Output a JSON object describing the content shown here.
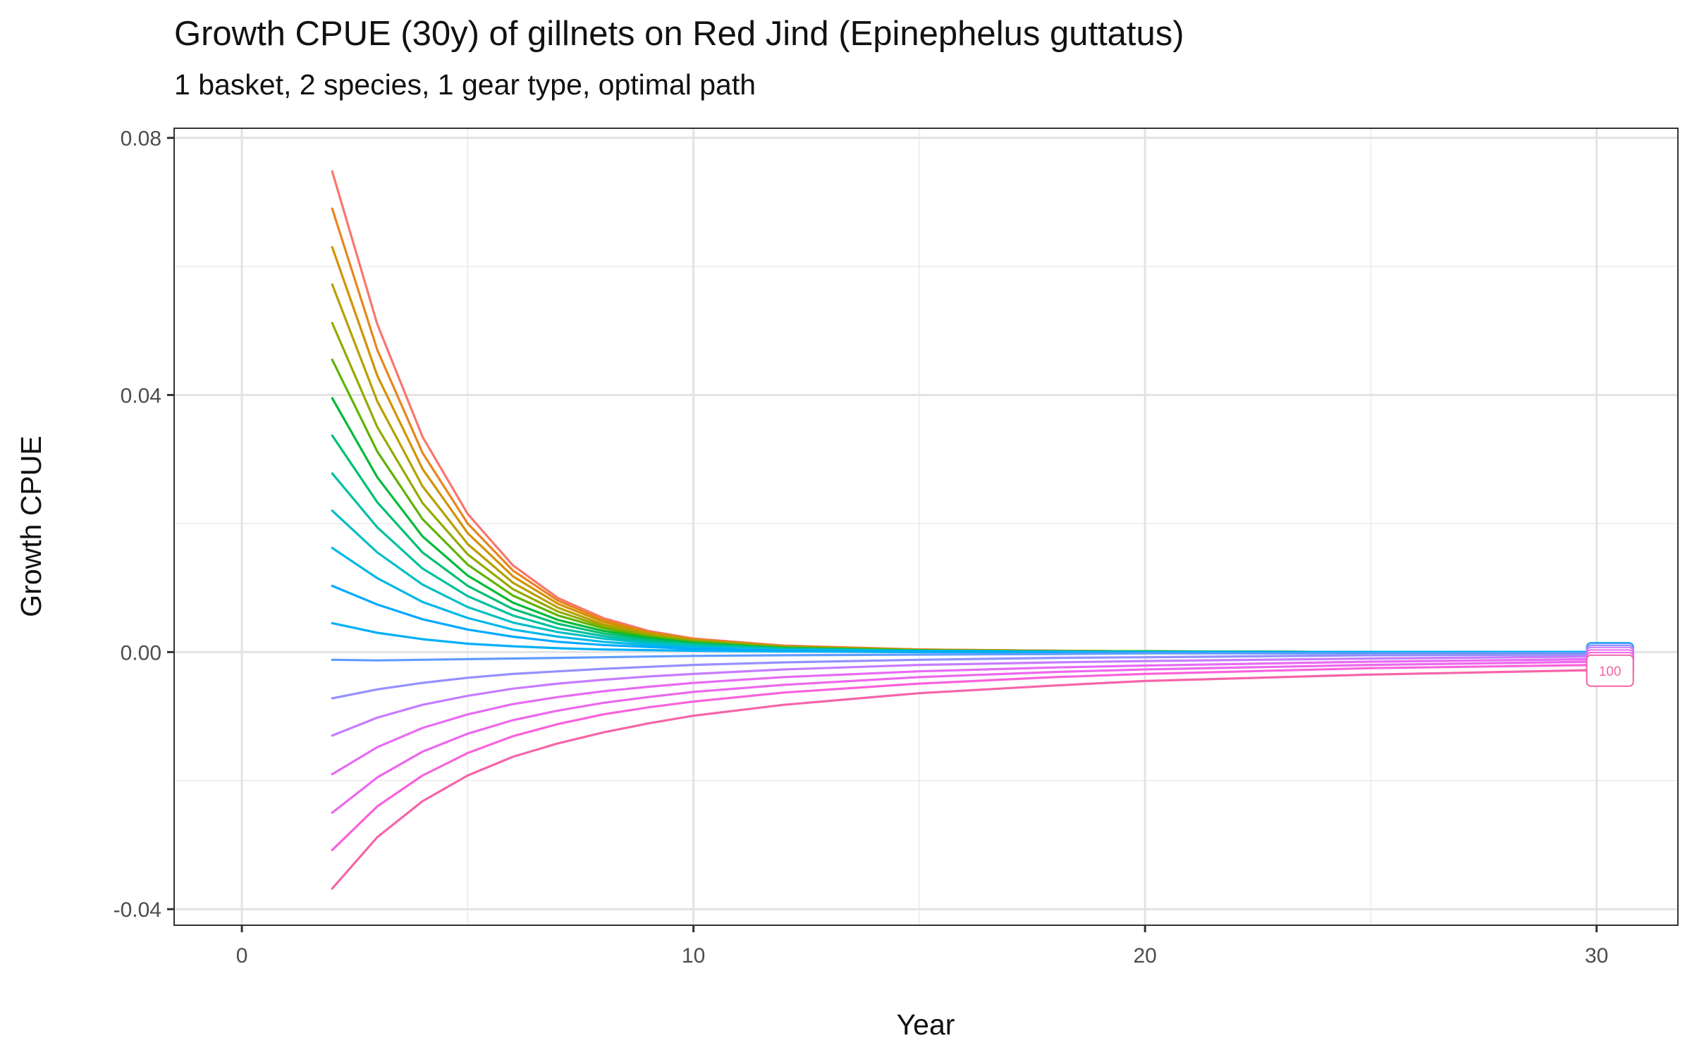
{
  "chart_data": {
    "type": "line",
    "title": "Growth CPUE (30y) of gillnets on Red Jind (Epinephelus guttatus)",
    "subtitle": "1 basket, 2 species, 1 gear type, optimal path",
    "xlabel": "Year",
    "ylabel": "Growth CPUE",
    "xlim": [
      -1.5,
      31.8
    ],
    "ylim": [
      -0.0425,
      0.0815
    ],
    "x_ticks": [
      0,
      10,
      20,
      30
    ],
    "x_tick_labels": [
      "0",
      "10",
      "20",
      "30"
    ],
    "y_ticks": [
      -0.04,
      0,
      0.04,
      0.08
    ],
    "y_tick_labels": [
      "-0.04",
      "0.00",
      "0.04",
      "0.08"
    ],
    "x_minor_ticks": [
      5,
      15,
      25
    ],
    "y_minor_ticks": [
      -0.02,
      0.02,
      0.06
    ],
    "grid": true,
    "legend": "none",
    "end_label": {
      "x": 30.35,
      "y": -0.0029,
      "text": "100",
      "color": "#f564a8"
    },
    "years": [
      2,
      3,
      4,
      5,
      6,
      7,
      8,
      9,
      10,
      12,
      15,
      18,
      20,
      25,
      30
    ],
    "series": [
      {
        "color": "#f8766d",
        "values": [
          0.0748,
          0.051,
          0.0335,
          0.0215,
          0.0135,
          0.0084,
          0.0053,
          0.0033,
          0.0021,
          0.001,
          0.0004,
          0.0002,
          0.0001,
          0.0,
          0.0
        ]
      },
      {
        "color": "#e7851e",
        "values": [
          0.069,
          0.047,
          0.031,
          0.02,
          0.0127,
          0.008,
          0.005,
          0.0031,
          0.002,
          0.0009,
          0.0004,
          0.0002,
          0.0001,
          0.0,
          0.0
        ]
      },
      {
        "color": "#d39200",
        "values": [
          0.063,
          0.043,
          0.0285,
          0.0185,
          0.0118,
          0.0075,
          0.0047,
          0.003,
          0.0019,
          0.0009,
          0.0003,
          0.0002,
          0.0001,
          0.0,
          0.0
        ]
      },
      {
        "color": "#b79f00",
        "values": [
          0.0572,
          0.039,
          0.0258,
          0.0168,
          0.0108,
          0.0069,
          0.0043,
          0.0028,
          0.0018,
          0.0008,
          0.0003,
          0.0001,
          0.0001,
          0.0,
          0.0
        ]
      },
      {
        "color": "#93aa00",
        "values": [
          0.0512,
          0.035,
          0.0232,
          0.0152,
          0.0098,
          0.0063,
          0.004,
          0.0026,
          0.0017,
          0.0008,
          0.0003,
          0.0001,
          0.0001,
          0.0,
          0.0
        ]
      },
      {
        "color": "#5eb300",
        "values": [
          0.0455,
          0.0312,
          0.0207,
          0.0136,
          0.0088,
          0.0057,
          0.0037,
          0.0024,
          0.0016,
          0.0007,
          0.0003,
          0.0001,
          0.0001,
          0.0,
          0.0
        ]
      },
      {
        "color": "#00ba38",
        "values": [
          0.0395,
          0.0272,
          0.018,
          0.0119,
          0.0077,
          0.005,
          0.0033,
          0.0022,
          0.0014,
          0.0006,
          0.0002,
          0.0001,
          0.0001,
          0.0,
          0.0
        ]
      },
      {
        "color": "#00bf74",
        "values": [
          0.0337,
          0.0233,
          0.0155,
          0.0103,
          0.0067,
          0.0044,
          0.0029,
          0.0019,
          0.0013,
          0.0006,
          0.0002,
          0.0001,
          0.0,
          0.0,
          0.0
        ]
      },
      {
        "color": "#00c19f",
        "values": [
          0.0278,
          0.0194,
          0.013,
          0.0087,
          0.0057,
          0.0037,
          0.0025,
          0.0016,
          0.0011,
          0.0005,
          0.0002,
          0.0001,
          0.0,
          0.0,
          0.0
        ]
      },
      {
        "color": "#00bfc4",
        "values": [
          0.022,
          0.0155,
          0.0105,
          0.007,
          0.0046,
          0.0031,
          0.0021,
          0.0014,
          0.0009,
          0.0004,
          0.0002,
          0.0001,
          0.0,
          0.0,
          0.0
        ]
      },
      {
        "color": "#00b8e7",
        "values": [
          0.0162,
          0.0115,
          0.0078,
          0.0053,
          0.0035,
          0.0024,
          0.0016,
          0.0011,
          0.0007,
          0.0003,
          0.0001,
          0.0,
          0.0,
          0.0,
          0.0
        ]
      },
      {
        "color": "#00a9ff",
        "values": [
          0.0103,
          0.0074,
          0.0051,
          0.0035,
          0.0024,
          0.0016,
          0.0011,
          0.0008,
          0.0005,
          0.0002,
          0.0001,
          0.0,
          0.0,
          0.0,
          0.0
        ]
      },
      {
        "color": "#00b0f6",
        "values": [
          0.0045,
          0.003,
          0.002,
          0.0013,
          0.0009,
          0.0006,
          0.0004,
          0.0003,
          0.0002,
          0.0001,
          0.0,
          0.0,
          0.0,
          0.0,
          0.0
        ]
      },
      {
        "color": "#619cff",
        "values": [
          -0.0012,
          -0.0013,
          -0.0012,
          -0.0011,
          -0.001,
          -0.0009,
          -0.0008,
          -0.0007,
          -0.0006,
          -0.0005,
          -0.0004,
          -0.0003,
          -0.0002,
          -0.0002,
          -0.0001
        ]
      },
      {
        "color": "#9590ff",
        "values": [
          -0.0072,
          -0.0058,
          -0.0048,
          -0.004,
          -0.0034,
          -0.003,
          -0.0026,
          -0.0023,
          -0.002,
          -0.0016,
          -0.0012,
          -0.0009,
          -0.0008,
          -0.0005,
          -0.0004
        ]
      },
      {
        "color": "#c77cff",
        "values": [
          -0.013,
          -0.0102,
          -0.0082,
          -0.0068,
          -0.0057,
          -0.0049,
          -0.0043,
          -0.0038,
          -0.0034,
          -0.0027,
          -0.002,
          -0.0016,
          -0.0014,
          -0.001,
          -0.0007
        ]
      },
      {
        "color": "#e76bf3",
        "values": [
          -0.019,
          -0.0148,
          -0.0118,
          -0.0097,
          -0.0081,
          -0.007,
          -0.0061,
          -0.0054,
          -0.0048,
          -0.0039,
          -0.003,
          -0.0024,
          -0.0021,
          -0.0015,
          -0.0011
        ]
      },
      {
        "color": "#ed68ed",
        "values": [
          -0.025,
          -0.0195,
          -0.0155,
          -0.0127,
          -0.0106,
          -0.0091,
          -0.0079,
          -0.007,
          -0.0062,
          -0.0051,
          -0.0039,
          -0.0031,
          -0.0027,
          -0.002,
          -0.0015
        ]
      },
      {
        "color": "#fa62db",
        "values": [
          -0.0308,
          -0.024,
          -0.0192,
          -0.0157,
          -0.0131,
          -0.0112,
          -0.0097,
          -0.0086,
          -0.0077,
          -0.0063,
          -0.0049,
          -0.0039,
          -0.0034,
          -0.0025,
          -0.002
        ]
      },
      {
        "color": "#f564a8",
        "values": [
          -0.0368,
          -0.0288,
          -0.0232,
          -0.0192,
          -0.0163,
          -0.0142,
          -0.0125,
          -0.0111,
          -0.0099,
          -0.0082,
          -0.0064,
          -0.0052,
          -0.0045,
          -0.0035,
          -0.0028
        ]
      }
    ]
  }
}
